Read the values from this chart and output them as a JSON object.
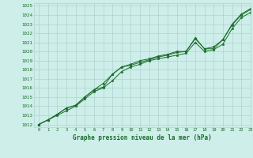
{
  "title": "Graphe pression niveau de la mer (hPa)",
  "xlim_min": -0.5,
  "xlim_max": 23.0,
  "ylim_min": 1011.7,
  "ylim_max": 1025.3,
  "yticks": [
    1012,
    1013,
    1014,
    1015,
    1016,
    1017,
    1018,
    1019,
    1020,
    1021,
    1022,
    1023,
    1024,
    1025
  ],
  "xticks": [
    0,
    1,
    2,
    3,
    4,
    5,
    6,
    7,
    8,
    9,
    10,
    11,
    12,
    13,
    14,
    15,
    16,
    17,
    18,
    19,
    20,
    21,
    22,
    23
  ],
  "bg_color": "#cdeee9",
  "grid_color": "#a8cdc9",
  "line_color": "#1a6b2a",
  "line1_x": [
    0,
    1,
    2,
    3,
    4,
    5,
    6,
    7,
    8,
    9,
    10,
    11,
    12,
    13,
    14,
    15,
    16,
    17,
    18,
    19,
    20,
    21,
    22,
    23
  ],
  "line1_y": [
    1012.0,
    1012.5,
    1013.1,
    1013.8,
    1014.1,
    1015.0,
    1015.8,
    1016.1,
    1017.5,
    1018.3,
    1018.5,
    1018.8,
    1019.1,
    1019.4,
    1019.6,
    1019.9,
    1020.0,
    1021.4,
    1020.3,
    1020.3,
    1021.3,
    1022.9,
    1024.0,
    1024.6
  ],
  "line2_x": [
    0,
    1,
    2,
    3,
    4,
    5,
    6,
    7,
    8,
    9,
    10,
    11,
    12,
    13,
    14,
    15,
    16,
    17,
    18,
    19,
    20,
    21,
    22,
    23
  ],
  "line2_y": [
    1012.0,
    1012.5,
    1013.1,
    1013.8,
    1014.1,
    1015.0,
    1015.8,
    1016.5,
    1017.5,
    1018.3,
    1018.6,
    1019.0,
    1019.2,
    1019.5,
    1019.7,
    1020.0,
    1020.0,
    1021.5,
    1020.3,
    1020.5,
    1021.3,
    1023.0,
    1024.1,
    1024.7
  ],
  "line3_x": [
    0,
    1,
    2,
    3,
    4,
    5,
    6,
    7,
    8,
    9,
    10,
    11,
    12,
    13,
    14,
    15,
    16,
    17,
    18,
    19,
    20,
    21,
    22,
    23
  ],
  "line3_y": [
    1012.0,
    1012.5,
    1013.0,
    1013.5,
    1014.0,
    1014.8,
    1015.6,
    1016.0,
    1016.8,
    1017.8,
    1018.3,
    1018.6,
    1019.0,
    1019.2,
    1019.4,
    1019.6,
    1019.8,
    1021.0,
    1020.0,
    1020.2,
    1020.8,
    1022.5,
    1023.7,
    1024.3
  ]
}
